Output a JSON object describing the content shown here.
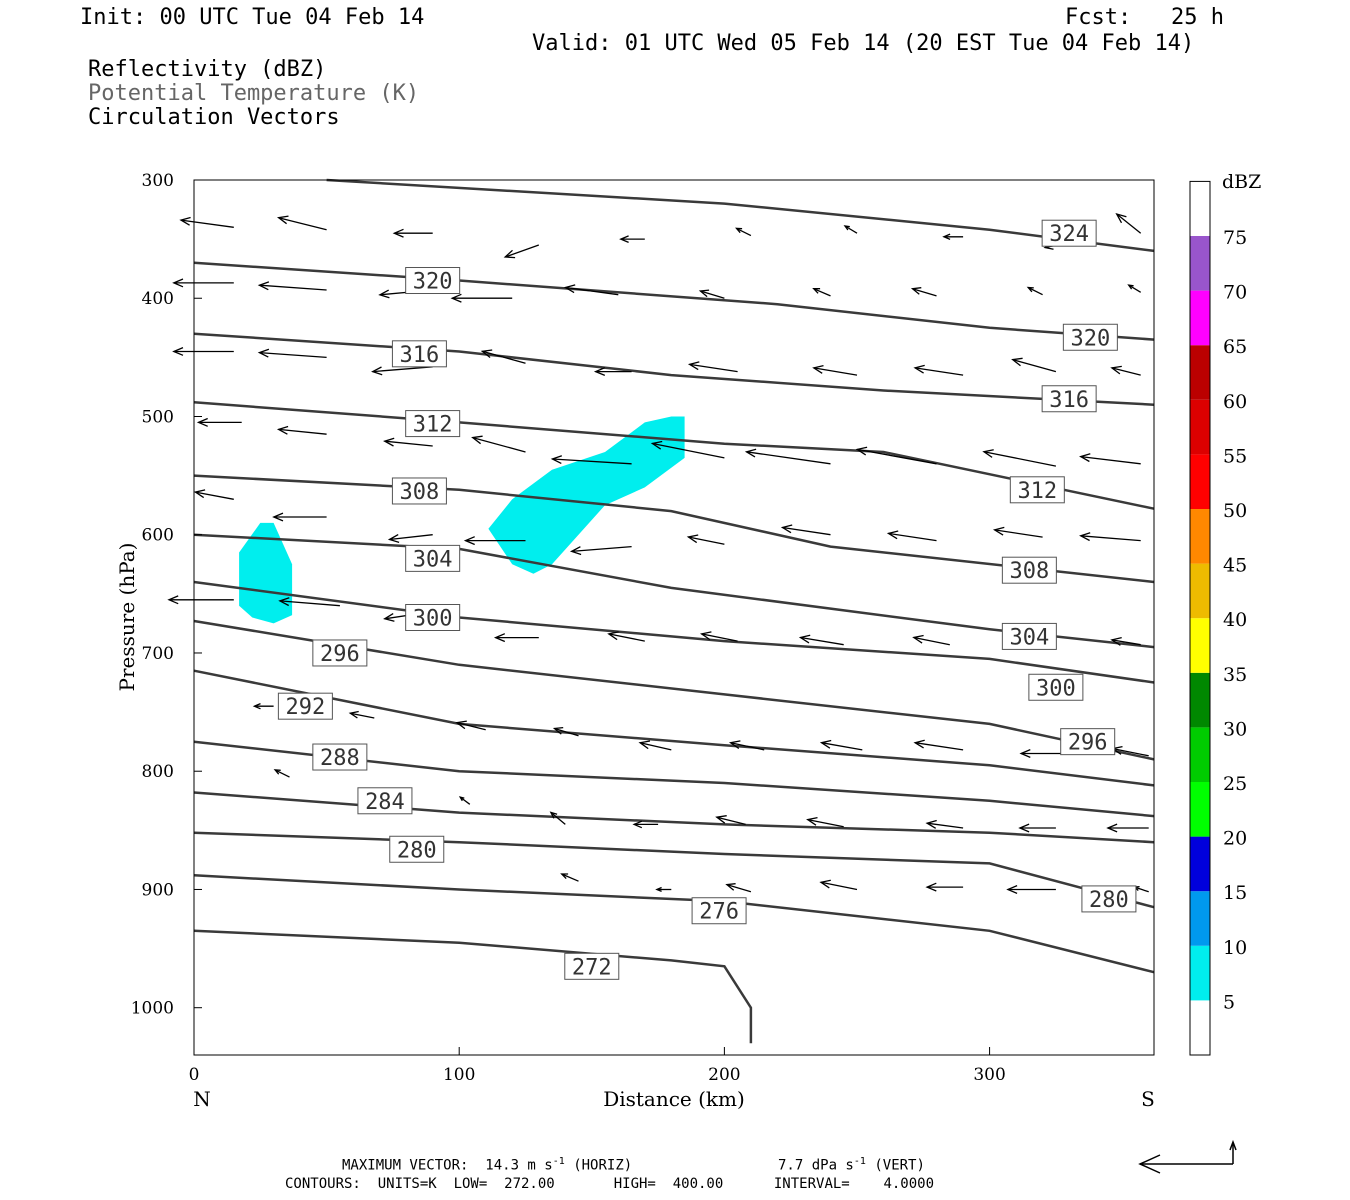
{
  "header": {
    "init": "Init: 00 UTC Tue 04 Feb 14",
    "fcst": "Fcst:   25 h",
    "valid": "Valid: 01 UTC Wed 05 Feb 14 (20 EST Tue 04 Feb 14)",
    "field1": "Reflectivity (dBZ)",
    "field2": "Potential Temperature (K)",
    "field3": "Circulation Vectors"
  },
  "colors": {
    "contour": "#3a3a3a",
    "reflectivity_5_10": "#00eeee",
    "field2_text": "#666666"
  },
  "chart_data": {
    "type": "cross-section",
    "xlabel": "Distance (km)",
    "ylabel": "Pressure (hPa)",
    "xlim": [
      0,
      362
    ],
    "ylim": [
      1040,
      300
    ],
    "x_ticks": [
      "0",
      "100",
      "200",
      "300"
    ],
    "y_ticks": [
      "300",
      "400",
      "500",
      "600",
      "700",
      "800",
      "900",
      "1000"
    ],
    "left_end_label": "N",
    "right_end_label": "S",
    "contour_units": "K",
    "theta_contours": [
      {
        "label": "324",
        "points": [
          [
            50,
            300
          ],
          [
            200,
            320
          ],
          [
            300,
            342
          ],
          [
            362,
            360
          ]
        ],
        "labels_at": [
          [
            330,
            345
          ]
        ]
      },
      {
        "label": "320",
        "points": [
          [
            0,
            370
          ],
          [
            100,
            385
          ],
          [
            220,
            405
          ],
          [
            300,
            425
          ],
          [
            362,
            435
          ]
        ],
        "labels_at": [
          [
            90,
            385
          ],
          [
            338,
            433
          ]
        ]
      },
      {
        "label": "316",
        "points": [
          [
            0,
            430
          ],
          [
            100,
            445
          ],
          [
            180,
            465
          ],
          [
            260,
            478
          ],
          [
            362,
            490
          ]
        ],
        "labels_at": [
          [
            85,
            447
          ],
          [
            330,
            485
          ]
        ]
      },
      {
        "label": "312",
        "points": [
          [
            0,
            488
          ],
          [
            100,
            505
          ],
          [
            200,
            523
          ],
          [
            260,
            530
          ],
          [
            362,
            578
          ]
        ],
        "labels_at": [
          [
            90,
            506
          ],
          [
            318,
            562
          ]
        ]
      },
      {
        "label": "308",
        "points": [
          [
            0,
            550
          ],
          [
            100,
            562
          ],
          [
            180,
            580
          ],
          [
            240,
            610
          ],
          [
            362,
            640
          ]
        ],
        "labels_at": [
          [
            85,
            563
          ],
          [
            315,
            630
          ]
        ]
      },
      {
        "label": "304",
        "points": [
          [
            0,
            600
          ],
          [
            100,
            612
          ],
          [
            180,
            645
          ],
          [
            300,
            680
          ],
          [
            362,
            695
          ]
        ],
        "labels_at": [
          [
            90,
            620
          ],
          [
            315,
            686
          ]
        ]
      },
      {
        "label": "300",
        "points": [
          [
            0,
            640
          ],
          [
            100,
            670
          ],
          [
            200,
            690
          ],
          [
            300,
            705
          ],
          [
            362,
            725
          ]
        ],
        "labels_at": [
          [
            90,
            670
          ],
          [
            325,
            729
          ]
        ]
      },
      {
        "label": "296",
        "points": [
          [
            0,
            673
          ],
          [
            100,
            710
          ],
          [
            200,
            735
          ],
          [
            300,
            760
          ],
          [
            362,
            790
          ]
        ],
        "labels_at": [
          [
            55,
            700
          ],
          [
            337,
            775
          ]
        ]
      },
      {
        "label": "292",
        "points": [
          [
            0,
            715
          ],
          [
            100,
            760
          ],
          [
            200,
            778
          ],
          [
            300,
            795
          ],
          [
            362,
            812
          ]
        ],
        "labels_at": [
          [
            42,
            745
          ]
        ]
      },
      {
        "label": "288",
        "points": [
          [
            0,
            775
          ],
          [
            100,
            800
          ],
          [
            200,
            810
          ],
          [
            300,
            825
          ],
          [
            362,
            838
          ]
        ],
        "labels_at": [
          [
            55,
            788
          ]
        ]
      },
      {
        "label": "284",
        "points": [
          [
            0,
            818
          ],
          [
            100,
            835
          ],
          [
            200,
            845
          ],
          [
            300,
            852
          ],
          [
            362,
            860
          ]
        ],
        "labels_at": [
          [
            72,
            825
          ]
        ]
      },
      {
        "label": "280",
        "points": [
          [
            0,
            852
          ],
          [
            100,
            860
          ],
          [
            200,
            870
          ],
          [
            300,
            878
          ],
          [
            362,
            915
          ]
        ],
        "labels_at": [
          [
            84,
            866
          ],
          [
            345,
            908
          ]
        ]
      },
      {
        "label": "276",
        "points": [
          [
            0,
            888
          ],
          [
            100,
            900
          ],
          [
            200,
            910
          ],
          [
            300,
            935
          ],
          [
            362,
            970
          ]
        ],
        "labels_at": [
          [
            198,
            918
          ]
        ]
      },
      {
        "label": "272",
        "points": [
          [
            0,
            935
          ],
          [
            100,
            945
          ],
          [
            180,
            960
          ],
          [
            200,
            965
          ],
          [
            210,
            1000
          ],
          [
            210,
            1030
          ]
        ],
        "labels_at": [
          [
            150,
            965
          ]
        ]
      }
    ],
    "reflectivity_areas": [
      {
        "dbz_range": [
          5,
          10
        ],
        "polygon": [
          [
            17,
            615
          ],
          [
            25,
            590
          ],
          [
            30,
            590
          ],
          [
            37,
            625
          ],
          [
            37,
            668
          ],
          [
            30,
            675
          ],
          [
            22,
            670
          ],
          [
            17,
            660
          ]
        ]
      },
      {
        "dbz_range": [
          5,
          10
        ],
        "polygon": [
          [
            111,
            595
          ],
          [
            120,
            570
          ],
          [
            135,
            545
          ],
          [
            155,
            530
          ],
          [
            170,
            505
          ],
          [
            180,
            500
          ],
          [
            185,
            500
          ],
          [
            185,
            535
          ],
          [
            170,
            560
          ],
          [
            155,
            575
          ],
          [
            145,
            600
          ],
          [
            135,
            625
          ],
          [
            128,
            633
          ],
          [
            120,
            625
          ]
        ]
      }
    ],
    "colorbar": {
      "title": "dBZ",
      "levels": [
        "5",
        "10",
        "15",
        "20",
        "25",
        "30",
        "35",
        "40",
        "45",
        "50",
        "55",
        "60",
        "65",
        "70",
        "75"
      ],
      "colors": [
        "#ffffff",
        "#00eeee",
        "#0099ee",
        "#0000dd",
        "#00ff00",
        "#00cc00",
        "#008800",
        "#ffff00",
        "#eebb00",
        "#ff8800",
        "#ff0000",
        "#dd0000",
        "#bb0000",
        "#ff00ff",
        "#9955cc",
        "#ffffff"
      ]
    },
    "vectors": [
      {
        "x": 15,
        "p": 340,
        "dx": -22,
        "dy": -3
      },
      {
        "x": 50,
        "p": 342,
        "dx": -20,
        "dy": -5
      },
      {
        "x": 90,
        "p": 345,
        "dx": -16,
        "dy": 0
      },
      {
        "x": 130,
        "p": 355,
        "dx": -14,
        "dy": 5
      },
      {
        "x": 170,
        "p": 350,
        "dx": -10,
        "dy": 0
      },
      {
        "x": 210,
        "p": 347,
        "dx": -6,
        "dy": -3
      },
      {
        "x": 250,
        "p": 345,
        "dx": -5,
        "dy": -3
      },
      {
        "x": 290,
        "p": 348,
        "dx": -8,
        "dy": 0
      },
      {
        "x": 330,
        "p": 353,
        "dx": -10,
        "dy": 2
      },
      {
        "x": 357,
        "p": 345,
        "dx": -10,
        "dy": -8
      },
      {
        "x": 15,
        "p": 387,
        "dx": -25,
        "dy": 0
      },
      {
        "x": 50,
        "p": 393,
        "dx": -28,
        "dy": -2
      },
      {
        "x": 90,
        "p": 393,
        "dx": -22,
        "dy": 2
      },
      {
        "x": 120,
        "p": 400,
        "dx": -25,
        "dy": 0
      },
      {
        "x": 160,
        "p": 397,
        "dx": -22,
        "dy": -3
      },
      {
        "x": 200,
        "p": 400,
        "dx": -10,
        "dy": -3
      },
      {
        "x": 240,
        "p": 398,
        "dx": -7,
        "dy": -3
      },
      {
        "x": 280,
        "p": 398,
        "dx": -10,
        "dy": -3
      },
      {
        "x": 320,
        "p": 397,
        "dx": -6,
        "dy": -3
      },
      {
        "x": 357,
        "p": 395,
        "dx": -5,
        "dy": -3
      },
      {
        "x": 15,
        "p": 445,
        "dx": -25,
        "dy": 0
      },
      {
        "x": 50,
        "p": 450,
        "dx": -28,
        "dy": -2
      },
      {
        "x": 90,
        "p": 458,
        "dx": -25,
        "dy": 2
      },
      {
        "x": 125,
        "p": 455,
        "dx": -18,
        "dy": -5
      },
      {
        "x": 165,
        "p": 462,
        "dx": -15,
        "dy": 0
      },
      {
        "x": 205,
        "p": 462,
        "dx": -20,
        "dy": -3
      },
      {
        "x": 250,
        "p": 465,
        "dx": -18,
        "dy": -3
      },
      {
        "x": 290,
        "p": 465,
        "dx": -20,
        "dy": -3
      },
      {
        "x": 325,
        "p": 462,
        "dx": -18,
        "dy": -5
      },
      {
        "x": 357,
        "p": 465,
        "dx": -12,
        "dy": -3
      },
      {
        "x": 18,
        "p": 505,
        "dx": -18,
        "dy": 0
      },
      {
        "x": 50,
        "p": 515,
        "dx": -20,
        "dy": -2
      },
      {
        "x": 90,
        "p": 525,
        "dx": -20,
        "dy": -2
      },
      {
        "x": 125,
        "p": 530,
        "dx": -22,
        "dy": -6
      },
      {
        "x": 165,
        "p": 540,
        "dx": -33,
        "dy": -2
      },
      {
        "x": 200,
        "p": 535,
        "dx": -30,
        "dy": -6
      },
      {
        "x": 240,
        "p": 540,
        "dx": -35,
        "dy": -5
      },
      {
        "x": 280,
        "p": 540,
        "dx": -33,
        "dy": -6
      },
      {
        "x": 325,
        "p": 542,
        "dx": -30,
        "dy": -6
      },
      {
        "x": 357,
        "p": 540,
        "dx": -25,
        "dy": -3
      },
      {
        "x": 15,
        "p": 570,
        "dx": -16,
        "dy": -3
      },
      {
        "x": 50,
        "p": 585,
        "dx": -22,
        "dy": 0
      },
      {
        "x": 90,
        "p": 600,
        "dx": -18,
        "dy": 2
      },
      {
        "x": 125,
        "p": 605,
        "dx": -25,
        "dy": 0
      },
      {
        "x": 165,
        "p": 610,
        "dx": -25,
        "dy": 2
      },
      {
        "x": 200,
        "p": 608,
        "dx": -15,
        "dy": -3
      },
      {
        "x": 240,
        "p": 600,
        "dx": -20,
        "dy": -3
      },
      {
        "x": 280,
        "p": 605,
        "dx": -20,
        "dy": -3
      },
      {
        "x": 320,
        "p": 602,
        "dx": -20,
        "dy": -3
      },
      {
        "x": 357,
        "p": 605,
        "dx": -25,
        "dy": -2
      },
      {
        "x": 15,
        "p": 655,
        "dx": -27,
        "dy": 0
      },
      {
        "x": 55,
        "p": 660,
        "dx": -25,
        "dy": -2
      },
      {
        "x": 90,
        "p": 665,
        "dx": -20,
        "dy": 3
      },
      {
        "x": 130,
        "p": 687,
        "dx": -18,
        "dy": 0
      },
      {
        "x": 170,
        "p": 690,
        "dx": -15,
        "dy": -3
      },
      {
        "x": 205,
        "p": 690,
        "dx": -15,
        "dy": -3
      },
      {
        "x": 245,
        "p": 693,
        "dx": -18,
        "dy": -3
      },
      {
        "x": 285,
        "p": 693,
        "dx": -15,
        "dy": -3
      },
      {
        "x": 320,
        "p": 687,
        "dx": -12,
        "dy": 0
      },
      {
        "x": 357,
        "p": 693,
        "dx": -12,
        "dy": -2
      },
      {
        "x": 30,
        "p": 745,
        "dx": -8,
        "dy": 0
      },
      {
        "x": 68,
        "p": 755,
        "dx": -10,
        "dy": -2
      },
      {
        "x": 110,
        "p": 765,
        "dx": -12,
        "dy": -3
      },
      {
        "x": 145,
        "p": 770,
        "dx": -10,
        "dy": -3
      },
      {
        "x": 180,
        "p": 782,
        "dx": -13,
        "dy": -3
      },
      {
        "x": 215,
        "p": 782,
        "dx": -14,
        "dy": -3
      },
      {
        "x": 252,
        "p": 782,
        "dx": -17,
        "dy": -3
      },
      {
        "x": 290,
        "p": 782,
        "dx": -20,
        "dy": -3
      },
      {
        "x": 330,
        "p": 785,
        "dx": -20,
        "dy": 0
      },
      {
        "x": 360,
        "p": 787,
        "dx": -15,
        "dy": -3
      },
      {
        "x": 36,
        "p": 805,
        "dx": -6,
        "dy": -3
      },
      {
        "x": 104,
        "p": 828,
        "dx": -4,
        "dy": -3
      },
      {
        "x": 140,
        "p": 845,
        "dx": -6,
        "dy": -5
      },
      {
        "x": 175,
        "p": 845,
        "dx": -10,
        "dy": 0
      },
      {
        "x": 208,
        "p": 845,
        "dx": -12,
        "dy": -3
      },
      {
        "x": 245,
        "p": 847,
        "dx": -15,
        "dy": -3
      },
      {
        "x": 290,
        "p": 848,
        "dx": -15,
        "dy": -2
      },
      {
        "x": 325,
        "p": 848,
        "dx": -15,
        "dy": 0
      },
      {
        "x": 360,
        "p": 848,
        "dx": -17,
        "dy": 0
      },
      {
        "x": 145,
        "p": 893,
        "dx": -7,
        "dy": -3
      },
      {
        "x": 180,
        "p": 900,
        "dx": -6,
        "dy": 0
      },
      {
        "x": 210,
        "p": 902,
        "dx": -10,
        "dy": -3
      },
      {
        "x": 250,
        "p": 900,
        "dx": -15,
        "dy": -3
      },
      {
        "x": 290,
        "p": 898,
        "dx": -15,
        "dy": 0
      },
      {
        "x": 325,
        "p": 900,
        "dx": -20,
        "dy": 0
      },
      {
        "x": 360,
        "p": 902,
        "dx": -6,
        "dy": -2
      }
    ],
    "reference_vector": {
      "horiz_ms": "14.3",
      "vert_dPas": "7.7"
    }
  },
  "footer": {
    "max_vector_prefix": "MAXIMUM VECTOR:  14.3 m s",
    "max_vector_horiz_suffix": " (HORIZ)",
    "max_vector_vert_prefix": "7.7 dPa s",
    "max_vector_vert_suffix": " (VERT)",
    "exponent": "-1",
    "contours_line": "CONTOURS:  UNITS=K  LOW=  272.00       HIGH=  400.00      INTERVAL=    4.0000"
  }
}
